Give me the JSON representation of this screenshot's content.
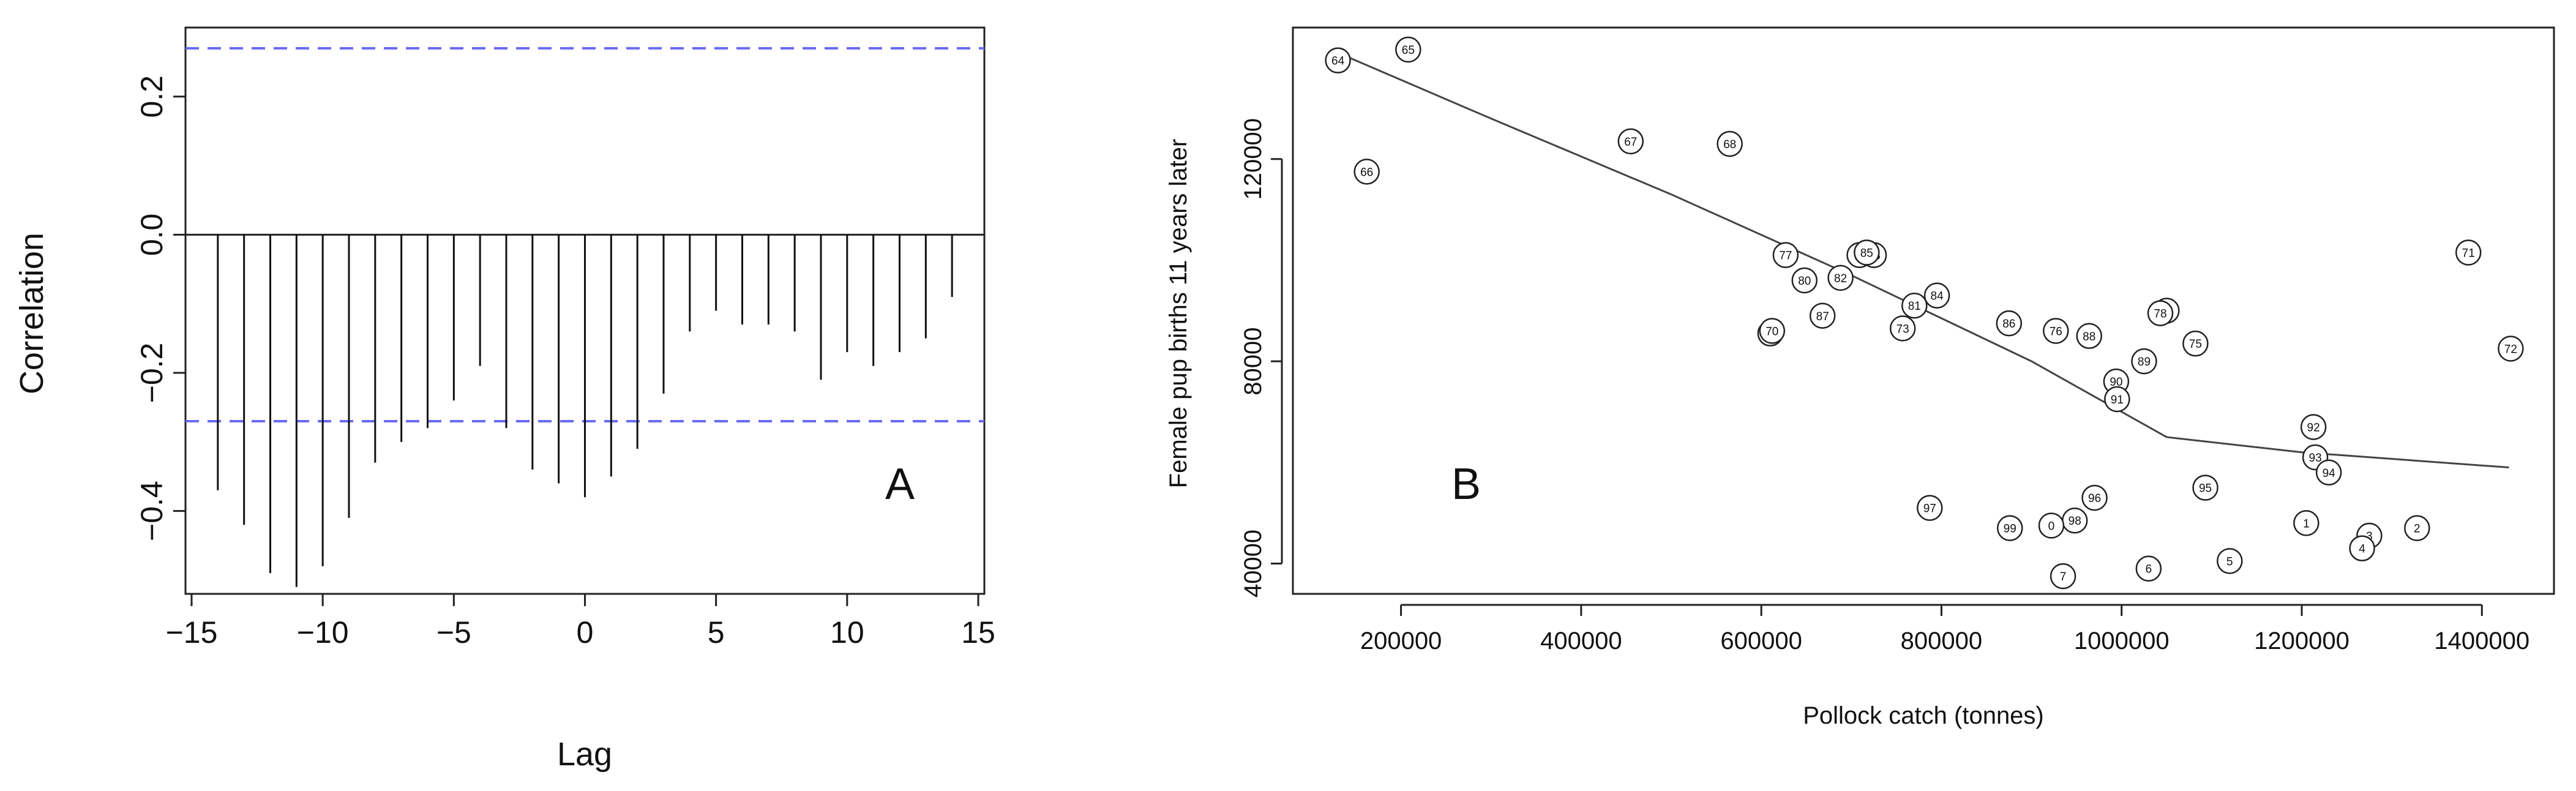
{
  "chart_data": [
    {
      "panel": "A",
      "type": "bar",
      "xlabel": "Lag",
      "ylabel": "Correlation",
      "xlim": [
        -15,
        15
      ],
      "ylim": [
        -0.52,
        0.3
      ],
      "x_ticks": [
        "−15",
        "−10",
        "−5",
        "0",
        "5",
        "10",
        "15"
      ],
      "y_ticks": [
        "−0.4",
        "−0.2",
        "0.0",
        "0.2"
      ],
      "confidence_band": [
        0.27,
        -0.27
      ],
      "lags": [
        -14,
        -13,
        -12,
        -11,
        -10,
        -9,
        -8,
        -7,
        -6,
        -5,
        -4,
        -3,
        -2,
        -1,
        0,
        1,
        2,
        3,
        4,
        5,
        6,
        7,
        8,
        9,
        10,
        11,
        12,
        13,
        14
      ],
      "values": [
        -0.37,
        -0.42,
        -0.49,
        -0.51,
        -0.48,
        -0.41,
        -0.33,
        -0.3,
        -0.28,
        -0.24,
        -0.19,
        -0.28,
        -0.34,
        -0.36,
        -0.38,
        -0.35,
        -0.31,
        -0.23,
        -0.14,
        -0.11,
        -0.13,
        -0.13,
        -0.14,
        -0.21,
        -0.17,
        -0.19,
        -0.17,
        -0.15,
        -0.09
      ]
    },
    {
      "panel": "B",
      "type": "scatter",
      "xlabel": "Pollock catch (tonnes)",
      "ylabel": "Female pup births 11 years later",
      "xlim": [
        80000,
        1480000
      ],
      "ylim": [
        34000,
        146000
      ],
      "x_ticks": [
        "200000",
        "400000",
        "600000",
        "800000",
        "1000000",
        "1200000",
        "1400000"
      ],
      "y_ticks": [
        "40000",
        "80000",
        "120000"
      ],
      "points": [
        {
          "label": "64",
          "x": 130000,
          "y": 139500
        },
        {
          "label": "65",
          "x": 208000,
          "y": 149500
        },
        {
          "label": "66",
          "x": 162000,
          "y": 117500
        },
        {
          "label": "67",
          "x": 455000,
          "y": 123500
        },
        {
          "label": "68",
          "x": 565000,
          "y": 123000
        },
        {
          "label": "69",
          "x": 610000,
          "y": 85500
        },
        {
          "label": "70",
          "x": 612000,
          "y": 86000
        },
        {
          "label": "71",
          "x": 1385000,
          "y": 101500
        },
        {
          "label": "72",
          "x": 1432000,
          "y": 82500
        },
        {
          "label": "73",
          "x": 757000,
          "y": 86500
        },
        {
          "label": "74",
          "x": 1050000,
          "y": 90000
        },
        {
          "label": "75",
          "x": 1082000,
          "y": 83500
        },
        {
          "label": "76",
          "x": 927000,
          "y": 86000
        },
        {
          "label": "77",
          "x": 627000,
          "y": 101000
        },
        {
          "label": "78",
          "x": 1043000,
          "y": 89500
        },
        {
          "label": "79",
          "x": 709000,
          "y": 101000
        },
        {
          "label": "80",
          "x": 648000,
          "y": 96000
        },
        {
          "label": "81",
          "x": 770000,
          "y": 91000
        },
        {
          "label": "82",
          "x": 688000,
          "y": 96500
        },
        {
          "label": "83",
          "x": 725000,
          "y": 101000
        },
        {
          "label": "84",
          "x": 795000,
          "y": 93000
        },
        {
          "label": "85",
          "x": 717000,
          "y": 101500
        },
        {
          "label": "86",
          "x": 875000,
          "y": 87500
        },
        {
          "label": "87",
          "x": 668000,
          "y": 89000
        },
        {
          "label": "88",
          "x": 964000,
          "y": 85000
        },
        {
          "label": "89",
          "x": 1025000,
          "y": 80000
        },
        {
          "label": "90",
          "x": 994000,
          "y": 76000
        },
        {
          "label": "91",
          "x": 995000,
          "y": 72500
        },
        {
          "label": "92",
          "x": 1213000,
          "y": 67000
        },
        {
          "label": "93",
          "x": 1215000,
          "y": 61000
        },
        {
          "label": "94",
          "x": 1230000,
          "y": 58000
        },
        {
          "label": "95",
          "x": 1093000,
          "y": 55000
        },
        {
          "label": "96",
          "x": 970000,
          "y": 53000
        },
        {
          "label": "97",
          "x": 787000,
          "y": 51000
        },
        {
          "label": "98",
          "x": 948000,
          "y": 48500
        },
        {
          "label": "99",
          "x": 876000,
          "y": 47000
        },
        {
          "label": "0",
          "x": 922000,
          "y": 47500
        },
        {
          "label": "1",
          "x": 1205000,
          "y": 48000
        },
        {
          "label": "2",
          "x": 1328000,
          "y": 47000
        },
        {
          "label": "3",
          "x": 1275000,
          "y": 45500
        },
        {
          "label": "4",
          "x": 1267000,
          "y": 43000
        },
        {
          "label": "5",
          "x": 1120000,
          "y": 40500
        },
        {
          "label": "6",
          "x": 1030000,
          "y": 39000
        },
        {
          "label": "7",
          "x": 935000,
          "y": 37500
        }
      ],
      "smooth_line": {
        "x": [
          130000,
          300000,
          500000,
          700000,
          900000,
          1050000,
          1200000,
          1430000
        ],
        "y": [
          141000,
          128000,
          113000,
          97000,
          80000,
          65000,
          62000,
          59000
        ]
      }
    }
  ],
  "panel_labels": {
    "a": "A",
    "b": "B"
  }
}
